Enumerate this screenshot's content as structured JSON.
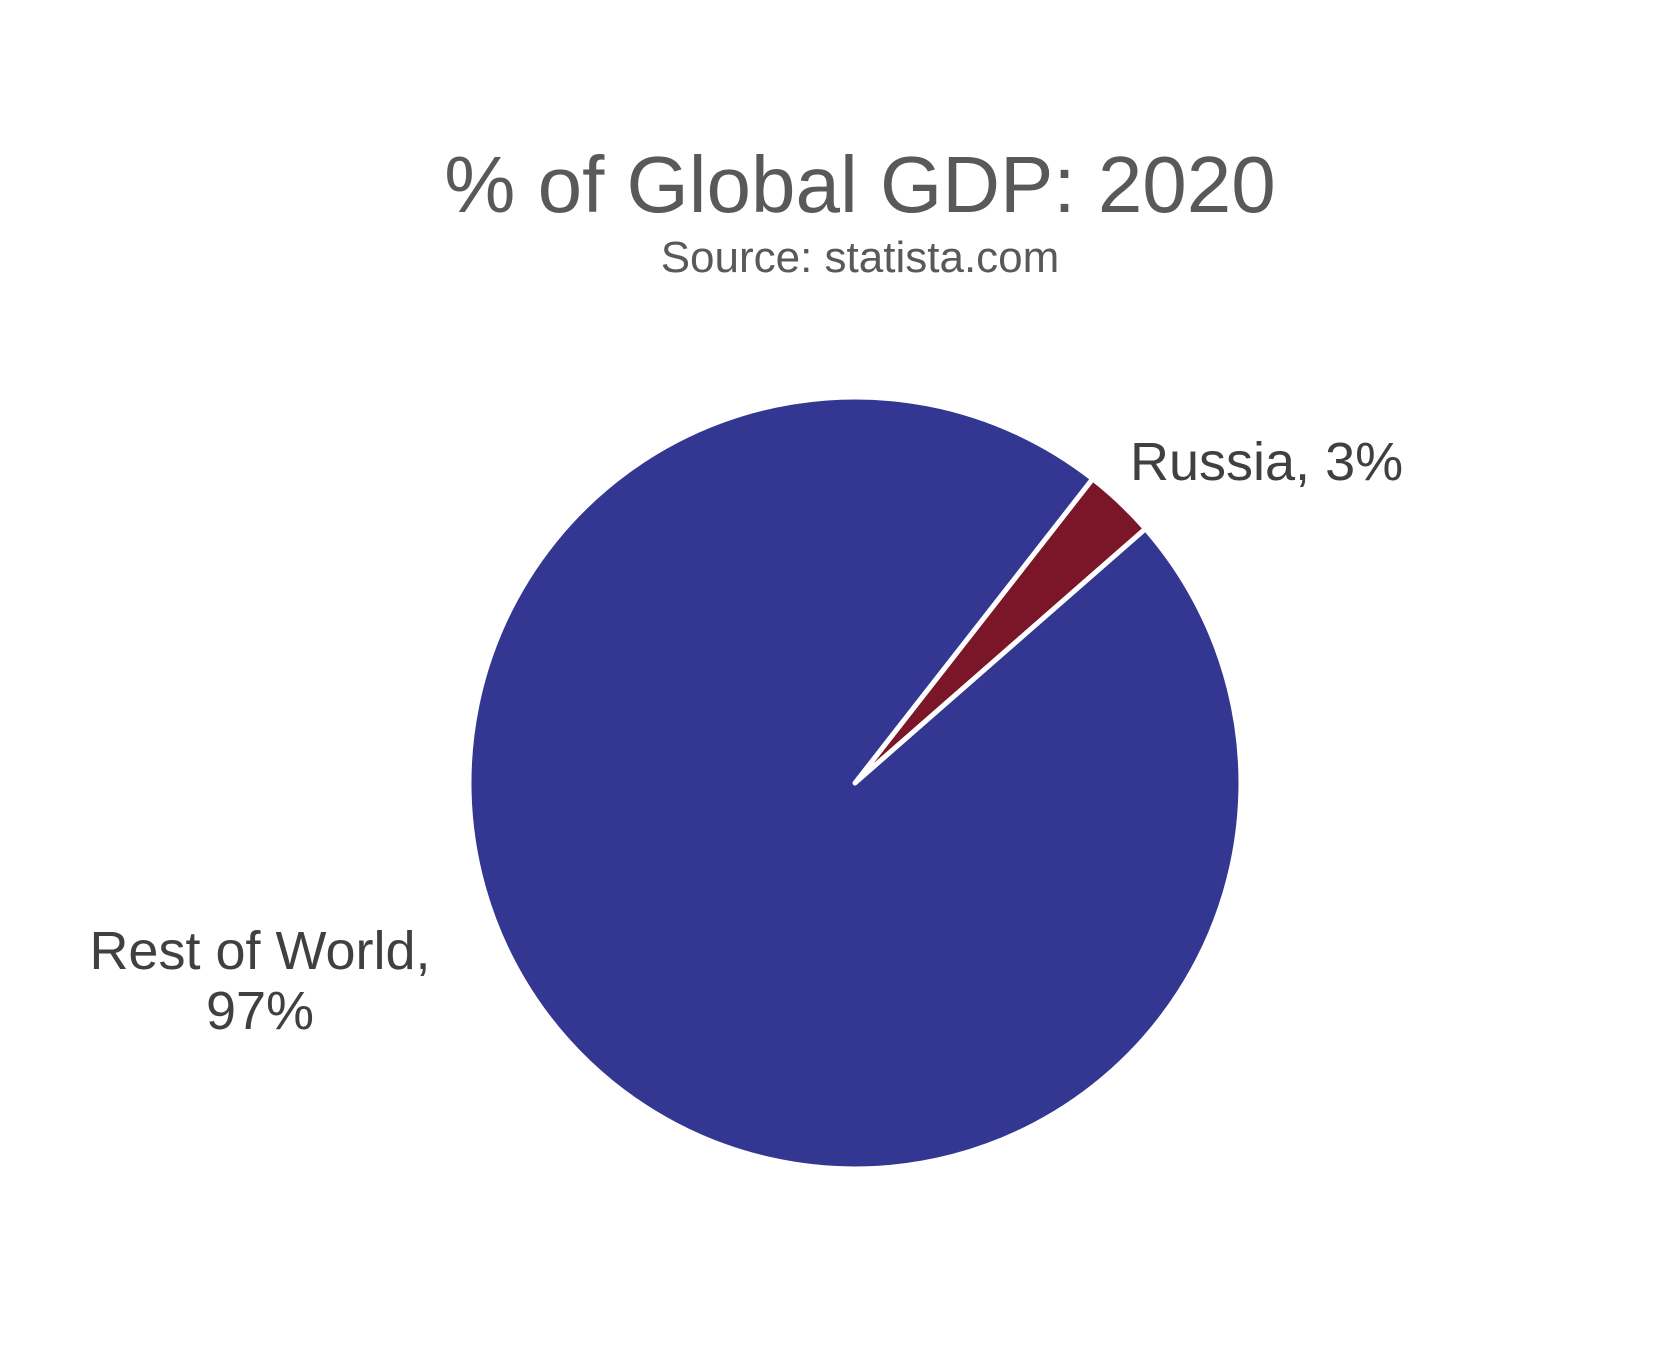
{
  "chart_data": {
    "type": "pie",
    "title": "% of Global GDP: 2020",
    "subtitle": "Source: statista.com",
    "slices": [
      {
        "name": "Russia",
        "value": 3,
        "label_lines": [
          "Russia, 3%"
        ],
        "color": "#7a1628"
      },
      {
        "name": "Rest of World",
        "value": 97,
        "label_lines": [
          "Rest of World,",
          "97%"
        ],
        "color": "#333792"
      }
    ],
    "slice_border_color": "#ffffff",
    "legend": "none"
  }
}
